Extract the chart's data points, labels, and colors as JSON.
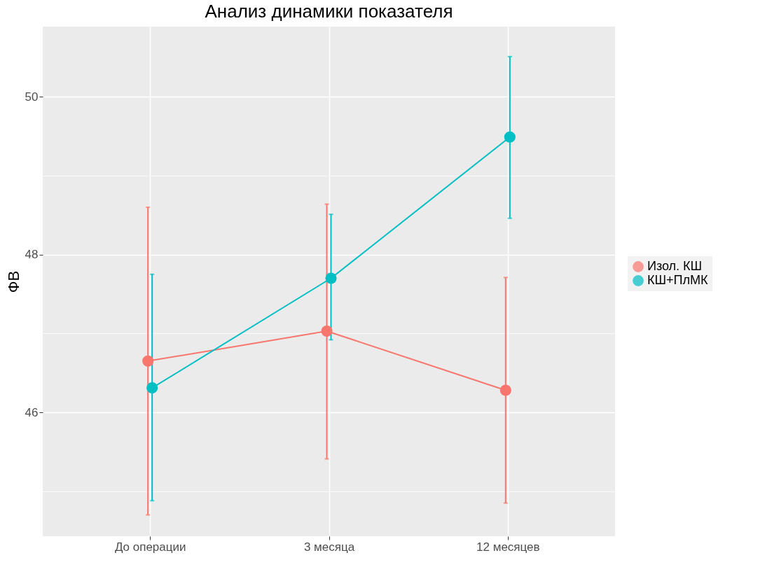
{
  "chart_data": {
    "type": "line",
    "title": "Анализ динамики показателя",
    "ylabel": "ФВ",
    "categories": [
      "До операции",
      "3 месяца",
      "12 месяцев"
    ],
    "series": [
      {
        "name": "Изол. КШ",
        "color": "#f8766d",
        "values": [
          46.65,
          47.03,
          46.28
        ],
        "errors": [
          [
            44.7,
            48.6
          ],
          [
            45.41,
            48.64
          ],
          [
            44.85,
            47.71
          ]
        ]
      },
      {
        "name": "КШ+ПлМК",
        "color": "#00bfc4",
        "values": [
          46.31,
          47.7,
          49.49
        ],
        "errors": [
          [
            44.88,
            47.75
          ],
          [
            46.92,
            48.51
          ],
          [
            48.46,
            50.51
          ]
        ]
      }
    ],
    "ylim": [
      44.43,
      50.89
    ],
    "yticks": [
      {
        "value": 45,
        "label": null
      },
      46,
      {
        "value": 47,
        "label": null
      },
      48,
      {
        "value": 49,
        "label": null
      },
      50
    ],
    "grid": true,
    "legend": "right",
    "marker": "circle",
    "line_style": "solid"
  }
}
